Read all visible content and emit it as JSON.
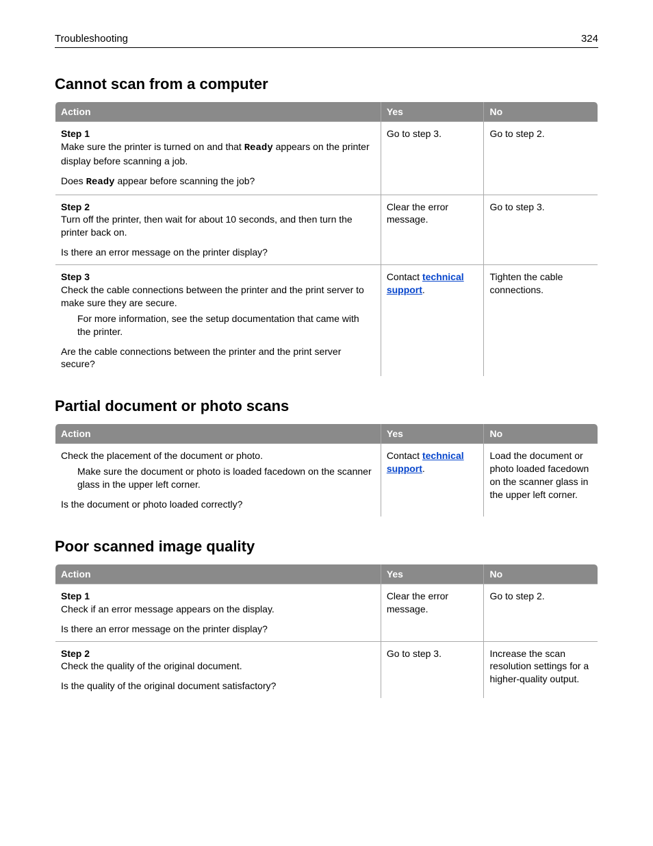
{
  "header": {
    "section": "Troubleshooting",
    "page": "324"
  },
  "sections": [
    {
      "title": "Cannot scan from a computer",
      "columns": [
        "Action",
        "Yes",
        "No"
      ],
      "rows": [
        {
          "step": "Step 1",
          "body1a": "Make sure the printer is turned on and that ",
          "mono1": "Ready",
          "body1b": " appears on the printer display before scanning a job.",
          "q_a": "Does ",
          "q_mono": "Ready",
          "q_b": " appear before scanning the job?",
          "yes": "Go to step 3.",
          "no": "Go to step 2."
        },
        {
          "step": "Step 2",
          "body": "Turn off the printer, then wait for about 10 seconds, and then turn the printer back on.",
          "question": "Is there an error message on the printer display?",
          "yes": "Clear the error message.",
          "no": "Go to step 3."
        },
        {
          "step": "Step 3",
          "body": "Check the cable connections between the printer and the print server to make sure they are secure.",
          "indent": "For more information, see the setup documentation that came with the printer.",
          "question": "Are the cable connections between the printer and the print server secure?",
          "yes_a": "Contact ",
          "yes_link": "technical support",
          "yes_b": ".",
          "no": "Tighten the cable connections."
        }
      ]
    },
    {
      "title": "Partial document or photo scans",
      "columns": [
        "Action",
        "Yes",
        "No"
      ],
      "rows": [
        {
          "body": "Check the placement of the document or photo.",
          "indent": "Make sure the document or photo is loaded facedown on the scanner glass in the upper left corner.",
          "question": "Is the document or photo loaded correctly?",
          "yes_a": "Contact ",
          "yes_link": "technical support",
          "yes_b": ".",
          "no": "Load the document or photo loaded facedown on the scanner glass in the upper left corner."
        }
      ]
    },
    {
      "title": "Poor scanned image quality",
      "columns": [
        "Action",
        "Yes",
        "No"
      ],
      "rows": [
        {
          "step": "Step 1",
          "body": "Check if an error message appears on the display.",
          "question": "Is there an error message on the printer display?",
          "yes": "Clear the error message.",
          "no": "Go to step 2."
        },
        {
          "step": "Step 2",
          "body": "Check the quality of the original document.",
          "question": "Is the quality of the original document satisfactory?",
          "yes": "Go to step 3.",
          "no": "Increase the scan resolution settings for a higher-quality output."
        }
      ]
    }
  ]
}
